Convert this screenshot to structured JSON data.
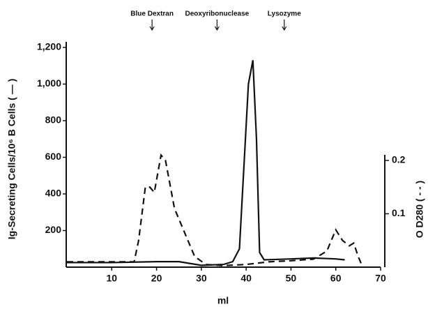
{
  "chart_data": {
    "type": "line",
    "xlabel": "ml",
    "ylabel": "Ig-Secreting Cells/10⁶ B Cells ( — )",
    "y2label": "O D280 ( - - )",
    "xlim": [
      0,
      70
    ],
    "xticks": [
      10,
      20,
      30,
      40,
      50,
      60,
      70
    ],
    "ylim": [
      0,
      1200
    ],
    "yticks": [
      200,
      400,
      600,
      800,
      {
        "value": 1000,
        "label": "1,000"
      },
      {
        "value": 1200,
        "label": "1,200"
      }
    ],
    "y2lim": [
      0,
      0.2
    ],
    "y2ticks": [
      0.1,
      0.2
    ],
    "annotations": [
      {
        "text": "Blue Dextran",
        "x": 19
      },
      {
        "text": "Deoxyribonuclease",
        "x": 33.5
      },
      {
        "text": "Lysozyme",
        "x": 48.5
      }
    ],
    "series": [
      {
        "color": "#111111",
        "dash": false,
        "x": [
          0,
          10,
          20,
          25,
          30,
          35,
          37,
          38.5,
          39.5,
          40.5,
          41.5,
          42.3,
          43,
          44,
          50,
          55,
          60,
          62
        ],
        "values": [
          25,
          25,
          30,
          30,
          10,
          15,
          30,
          100,
          550,
          1000,
          1130,
          700,
          80,
          40,
          45,
          50,
          45,
          40
        ]
      },
      {
        "color": "#111111",
        "dash": true,
        "axis": "y2",
        "x": [
          0,
          15,
          16,
          17.5,
          18.5,
          19.5,
          21,
          22,
          24,
          26,
          28.5,
          31,
          35,
          40,
          45,
          50,
          55,
          58,
          60,
          61.5,
          63,
          64,
          65,
          66
        ],
        "values": [
          0.01,
          0.01,
          0.05,
          0.15,
          0.15,
          0.14,
          0.21,
          0.2,
          0.11,
          0.07,
          0.02,
          0.005,
          0.003,
          0.005,
          0.01,
          0.012,
          0.015,
          0.03,
          0.07,
          0.05,
          0.04,
          0.045,
          0.02,
          0
        ]
      }
    ]
  }
}
